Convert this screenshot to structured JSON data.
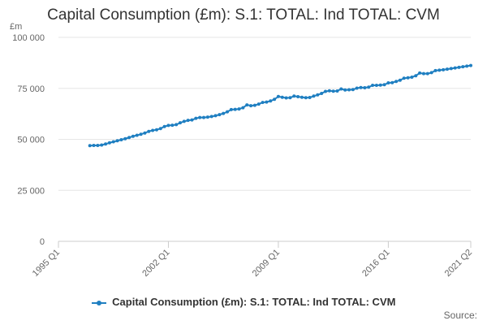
{
  "chart_data": {
    "type": "line",
    "title": "Capital Consumption (£m): S.1: TOTAL: Ind TOTAL: CVM",
    "ylabel": "£m",
    "xlabel": "",
    "ylim": [
      0,
      100000
    ],
    "y_ticks": [
      0,
      25000,
      50000,
      75000,
      100000
    ],
    "y_tick_labels": [
      "0",
      "25 000",
      "50 000",
      "75 000",
      "100 000"
    ],
    "x_tick_labels": [
      "1995 Q1",
      "2002 Q1",
      "2009 Q1",
      "2016 Q1",
      "2021 Q2"
    ],
    "x_tick_index": [
      0,
      28,
      56,
      84,
      105
    ],
    "x_range_index": [
      0,
      105
    ],
    "series": [
      {
        "name": "Capital Consumption (£m): S.1: TOTAL: Ind TOTAL: CVM",
        "color": "#1f7fc1",
        "start_index": 8,
        "start_label": "1997 Q1",
        "values": [
          46900,
          47000,
          47000,
          47200,
          47700,
          48300,
          48800,
          49300,
          49800,
          50300,
          50900,
          51500,
          52000,
          52500,
          53100,
          53900,
          54400,
          54700,
          55300,
          56300,
          56800,
          56900,
          57200,
          58100,
          58800,
          59300,
          59500,
          60300,
          60700,
          60700,
          60900,
          61200,
          61600,
          62100,
          62700,
          63500,
          64600,
          64700,
          64900,
          65500,
          66900,
          66500,
          66700,
          67300,
          68100,
          68300,
          68800,
          69600,
          71000,
          70600,
          70300,
          70400,
          71200,
          70900,
          70600,
          70400,
          70500,
          71200,
          71800,
          72500,
          73500,
          73800,
          73600,
          73700,
          74700,
          74200,
          74300,
          74400,
          75100,
          75400,
          75300,
          75600,
          76500,
          76500,
          76600,
          76800,
          77700,
          77800,
          78400,
          79000,
          80000,
          80200,
          80500,
          81200,
          82500,
          82200,
          82200,
          82700,
          83700,
          83900,
          84100,
          84400,
          84700,
          85000,
          85300,
          85600,
          85900,
          86200
        ]
      }
    ],
    "legend": "bottom-center",
    "grid": true
  },
  "source_label": "Source:"
}
